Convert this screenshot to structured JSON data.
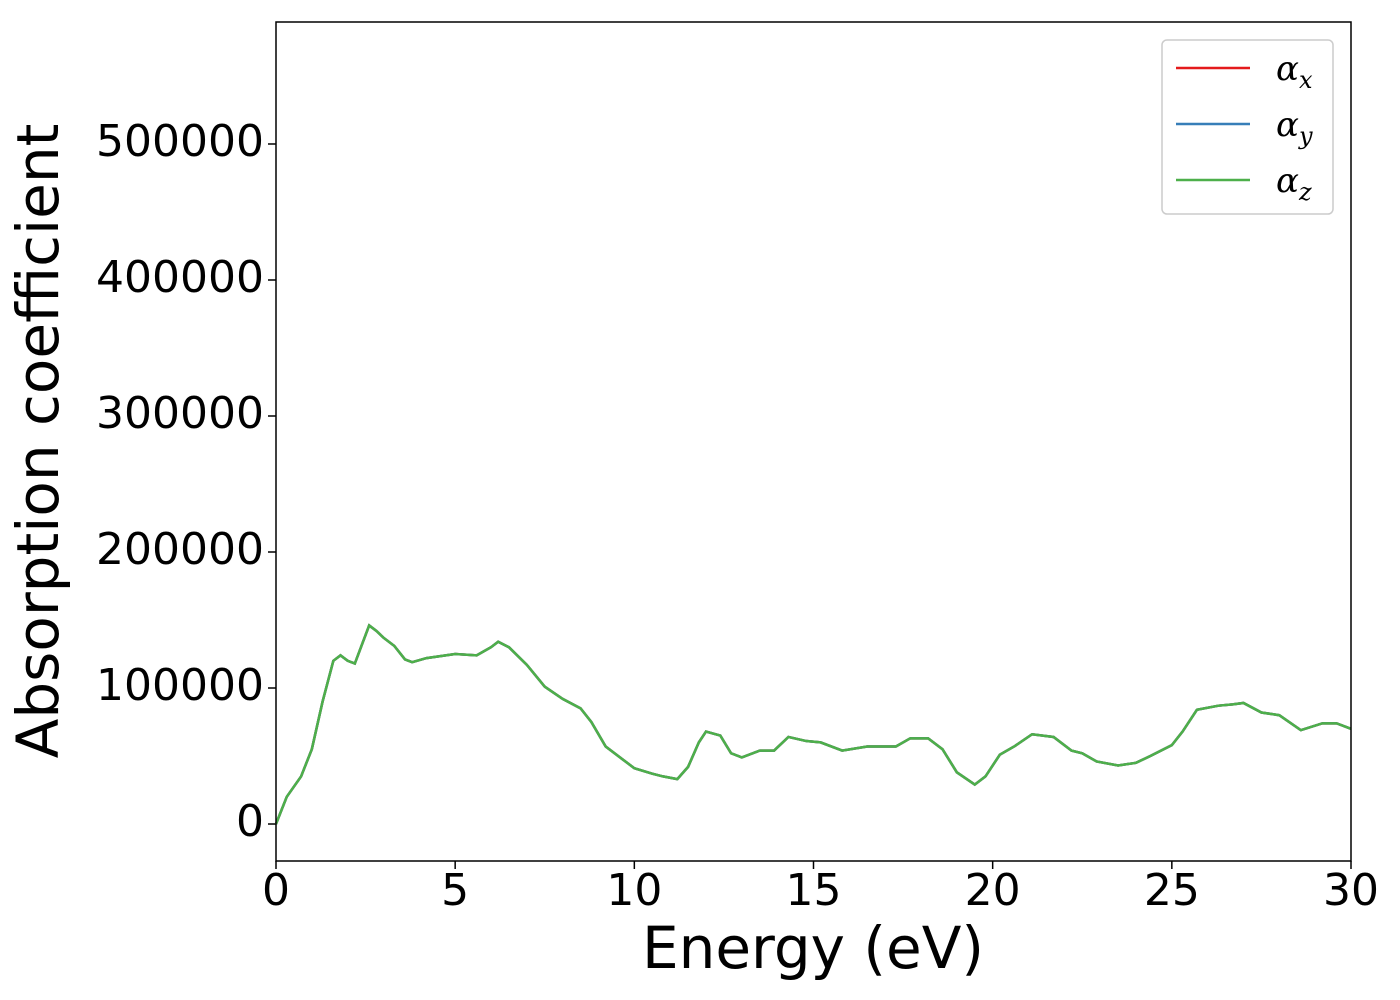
{
  "chart_data": {
    "type": "line",
    "xlabel": "Energy (eV)",
    "ylabel": "Absorption coefficient",
    "x": [
      0,
      0.3,
      0.7,
      1.0,
      1.3,
      1.6,
      1.8,
      2.0,
      2.2,
      2.4,
      2.6,
      2.8,
      3.0,
      3.3,
      3.6,
      3.8,
      4.2,
      5.0,
      5.6,
      6.0,
      6.2,
      6.5,
      7.0,
      7.5,
      8.0,
      8.5,
      8.8,
      9.2,
      9.7,
      10.0,
      10.5,
      10.8,
      11.2,
      11.5,
      11.8,
      12.0,
      12.4,
      12.7,
      13.0,
      13.5,
      13.9,
      14.3,
      14.8,
      15.2,
      15.8,
      16.5,
      17.3,
      17.7,
      18.2,
      18.6,
      19.0,
      19.5,
      19.8,
      20.2,
      20.6,
      21.1,
      21.7,
      22.2,
      22.5,
      22.9,
      23.5,
      24.0,
      24.4,
      25.0,
      25.3,
      25.7,
      26.3,
      26.7,
      27.0,
      27.5,
      28.0,
      28.6,
      29.2,
      29.6,
      30.0
    ],
    "series": [
      {
        "name": "αx",
        "color": "#e41a1c",
        "values": [
          0,
          20000,
          35000,
          55000,
          90000,
          120000,
          124000,
          120000,
          118000,
          132000,
          146000,
          142000,
          137000,
          131000,
          121000,
          119000,
          122000,
          125000,
          124000,
          130000,
          134000,
          130000,
          117000,
          101000,
          92000,
          85000,
          75000,
          57000,
          47000,
          41000,
          37000,
          35000,
          33000,
          42000,
          60000,
          68000,
          65000,
          52000,
          49000,
          54000,
          54000,
          64000,
          61000,
          60000,
          54000,
          57000,
          57000,
          63000,
          63000,
          55000,
          38000,
          29000,
          35000,
          51000,
          57000,
          66000,
          64000,
          54000,
          52000,
          46000,
          43000,
          45000,
          50000,
          58000,
          68000,
          84000,
          87000,
          88000,
          89000,
          82000,
          80000,
          69000,
          74000,
          74000,
          70000
        ]
      },
      {
        "name": "αy",
        "color": "#377eb8",
        "values": [
          0,
          20000,
          35000,
          55000,
          90000,
          120000,
          124000,
          120000,
          118000,
          132000,
          146000,
          142000,
          137000,
          131000,
          121000,
          119000,
          122000,
          125000,
          124000,
          130000,
          134000,
          130000,
          117000,
          101000,
          92000,
          85000,
          75000,
          57000,
          47000,
          41000,
          37000,
          35000,
          33000,
          42000,
          60000,
          68000,
          65000,
          52000,
          49000,
          54000,
          54000,
          64000,
          61000,
          60000,
          54000,
          57000,
          57000,
          63000,
          63000,
          55000,
          38000,
          29000,
          35000,
          51000,
          57000,
          66000,
          64000,
          54000,
          52000,
          46000,
          43000,
          45000,
          50000,
          58000,
          68000,
          84000,
          87000,
          88000,
          89000,
          82000,
          80000,
          69000,
          74000,
          74000,
          70000
        ]
      },
      {
        "name": "αz",
        "color": "#4daf4a",
        "values": [
          0,
          20000,
          35000,
          55000,
          90000,
          120000,
          124000,
          120000,
          118000,
          132000,
          146000,
          142000,
          137000,
          131000,
          121000,
          119000,
          122000,
          125000,
          124000,
          130000,
          134000,
          130000,
          117000,
          101000,
          92000,
          85000,
          75000,
          57000,
          47000,
          41000,
          37000,
          35000,
          33000,
          42000,
          60000,
          68000,
          65000,
          52000,
          49000,
          54000,
          54000,
          64000,
          61000,
          60000,
          54000,
          57000,
          57000,
          63000,
          63000,
          55000,
          38000,
          29000,
          35000,
          51000,
          57000,
          66000,
          64000,
          54000,
          52000,
          46000,
          43000,
          45000,
          50000,
          58000,
          68000,
          84000,
          87000,
          88000,
          89000,
          82000,
          80000,
          69000,
          74000,
          74000,
          70000
        ]
      }
    ],
    "xlim": [
      0,
      30
    ],
    "xticks": [
      0,
      5,
      10,
      15,
      20,
      25,
      30
    ],
    "ylim": [
      -27200,
      589700
    ],
    "yticks": [
      0,
      100000,
      200000,
      300000,
      400000,
      500000
    ],
    "grid": false,
    "legend": "upper right"
  }
}
